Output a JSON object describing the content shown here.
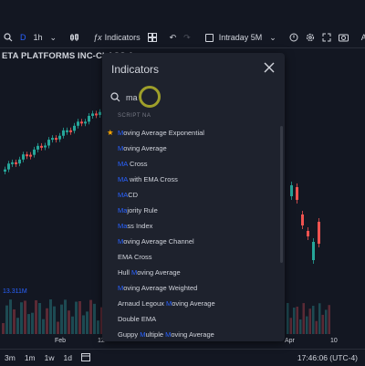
{
  "toolbar": {
    "interval_prefix": "D",
    "interval": "1h",
    "indicators_label": "Indicators",
    "session": "Intraday 5M",
    "auto_label": "Auto"
  },
  "chart": {
    "symbol_title": "ETA PLATFORMS INC-CLASS A ·",
    "volume_value": "13.311M"
  },
  "xaxis": {
    "labels": [
      "Feb",
      "12",
      "Apr",
      "10"
    ]
  },
  "bottom": {
    "timeframes": [
      "3m",
      "1m",
      "1w",
      "1d"
    ],
    "clock": "17:46:06 (UTC-4)"
  },
  "dialog": {
    "title": "Indicators",
    "search_value": "ma",
    "section_label": "SCRIPT NA",
    "results": [
      {
        "label": "Moving Average Exponential",
        "starred": true
      },
      {
        "label": "Moving Average"
      },
      {
        "label": "MA Cross"
      },
      {
        "label": "MA with EMA Cross"
      },
      {
        "label": "MACD"
      },
      {
        "label": "Majority Rule"
      },
      {
        "label": "Mass Index"
      },
      {
        "label": "Moving Average Channel"
      },
      {
        "label": "EMA Cross"
      },
      {
        "label": "Hull Moving Average"
      },
      {
        "label": "Moving Average Weighted"
      },
      {
        "label": "Arnaud Legoux Moving Average"
      },
      {
        "label": "Double EMA"
      },
      {
        "label": "Guppy Multiple Moving Average"
      }
    ]
  },
  "colors": {
    "up": "#26a69a",
    "down": "#ef5350",
    "accent": "#2962ff",
    "star": "#f7a600"
  }
}
